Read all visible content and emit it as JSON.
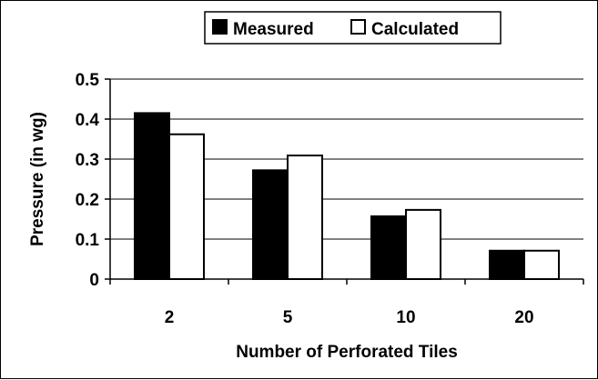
{
  "chart_data": {
    "type": "bar",
    "title": "",
    "xlabel": "Number of Perforated Tiles",
    "ylabel": "Pressure (in wg)",
    "categories": [
      "2",
      "5",
      "10",
      "20"
    ],
    "series": [
      {
        "name": "Measured",
        "values": [
          0.415,
          0.272,
          0.157,
          0.071
        ],
        "color": "#000000"
      },
      {
        "name": "Calculated",
        "values": [
          0.362,
          0.309,
          0.173,
          0.071
        ],
        "color": "#ffffff"
      }
    ],
    "ylim": [
      0,
      0.5
    ],
    "yticks": [
      "0",
      "0.1",
      "0.2",
      "0.3",
      "0.4",
      "0.5"
    ],
    "grid": true,
    "legend_position": "top-center"
  }
}
